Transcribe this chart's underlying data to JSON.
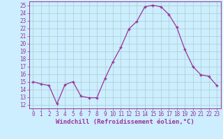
{
  "x": [
    0,
    1,
    2,
    3,
    4,
    5,
    6,
    7,
    8,
    9,
    10,
    11,
    12,
    13,
    14,
    15,
    16,
    17,
    18,
    19,
    20,
    21,
    22,
    23
  ],
  "y": [
    15.0,
    14.7,
    14.5,
    12.1,
    14.6,
    15.0,
    13.1,
    12.9,
    12.9,
    15.4,
    17.6,
    19.5,
    21.9,
    22.9,
    24.8,
    25.0,
    24.8,
    23.8,
    22.1,
    19.2,
    17.0,
    15.9,
    15.7,
    14.5
  ],
  "line_color": "#993399",
  "marker_color": "#993399",
  "bg_color": "#cceeff",
  "grid_color": "#aacccc",
  "xlabel": "Windchill (Refroidissement éolien,°C)",
  "xlim": [
    -0.5,
    23.5
  ],
  "ylim": [
    11.5,
    25.5
  ],
  "yticks": [
    12,
    13,
    14,
    15,
    16,
    17,
    18,
    19,
    20,
    21,
    22,
    23,
    24,
    25
  ],
  "xticks": [
    0,
    1,
    2,
    3,
    4,
    5,
    6,
    7,
    8,
    9,
    10,
    11,
    12,
    13,
    14,
    15,
    16,
    17,
    18,
    19,
    20,
    21,
    22,
    23
  ],
  "tick_fontsize": 5.5,
  "label_fontsize": 6.5
}
